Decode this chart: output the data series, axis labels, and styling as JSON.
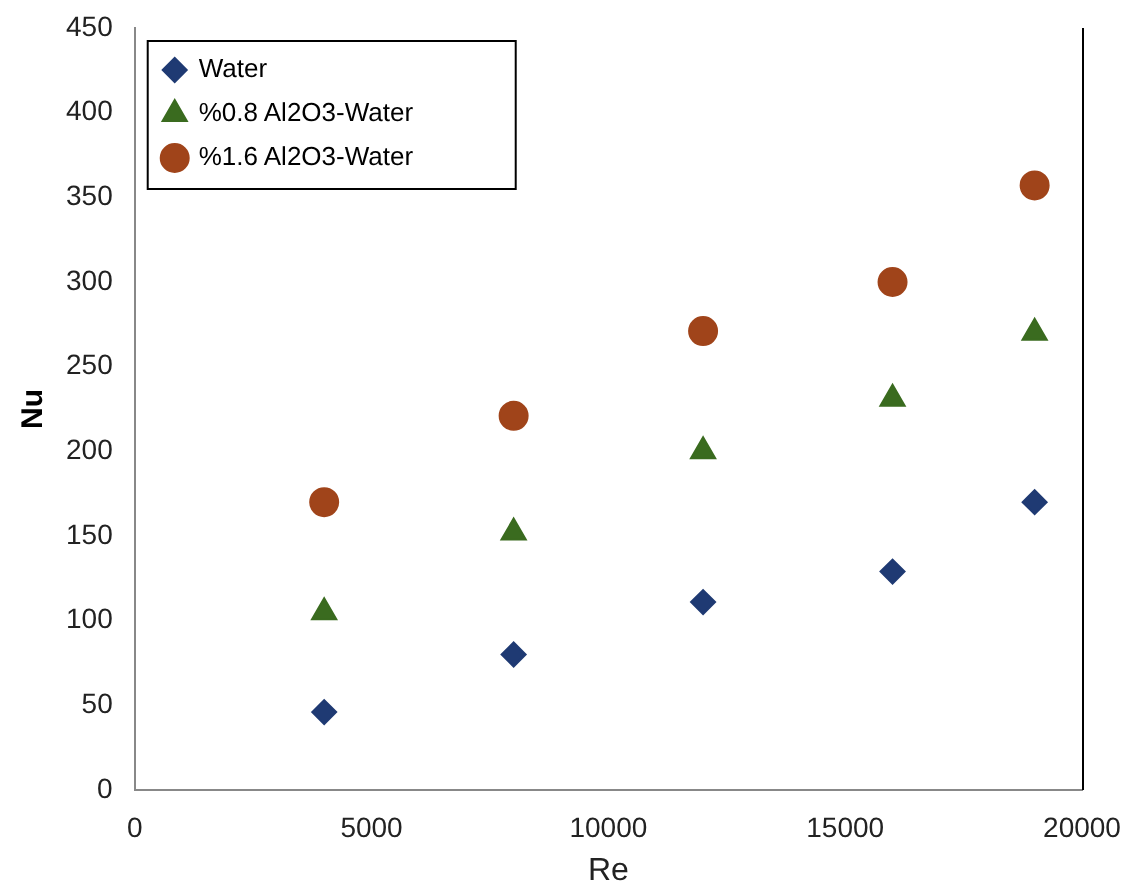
{
  "chart_data": {
    "type": "scatter",
    "xlabel": "Re",
    "ylabel": "Nu",
    "xlim": [
      0,
      20000
    ],
    "xticks": [
      0,
      5000,
      10000,
      15000,
      20000
    ],
    "ylim": [
      0,
      450
    ],
    "yticks": [
      0,
      50,
      100,
      150,
      200,
      250,
      300,
      350,
      400,
      450
    ],
    "grid": false,
    "legend": "top left",
    "x": [
      4000,
      8000,
      12000,
      16000,
      19000
    ],
    "series": [
      {
        "name": "Water",
        "color": "#1f3a73",
        "marker": "diamond",
        "values": [
          46,
          80,
          111,
          129,
          170
        ]
      },
      {
        "name": "%0.8 Al2O3-Water",
        "color": "#3a6b1f",
        "marker": "triangle",
        "values": [
          105,
          152,
          200,
          231,
          270
        ]
      },
      {
        "name": "%1.6 Al2O3-Water",
        "color": "#a0441a",
        "marker": "circle",
        "values": [
          170,
          221,
          271,
          300,
          357
        ]
      }
    ]
  }
}
